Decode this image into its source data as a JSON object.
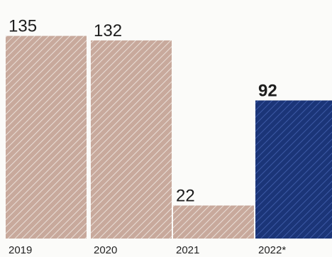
{
  "chart_data": {
    "type": "bar",
    "categories": [
      "2019",
      "2020",
      "2021",
      "2022*"
    ],
    "values": [
      135,
      132,
      22,
      92
    ],
    "value_labels": [
      "135",
      "132",
      "22",
      "92"
    ],
    "highlight_index": 3,
    "colors": {
      "bar": "#c8a99c",
      "bar_hatch": "#eadfd8",
      "highlight": "#1b3578",
      "highlight_hatch": "#3d5aa6",
      "text": "#1d1d1d"
    },
    "ylim": [
      0,
      140
    ],
    "grid": false,
    "legend": "none",
    "title": "",
    "xlabel": "",
    "ylabel": ""
  }
}
